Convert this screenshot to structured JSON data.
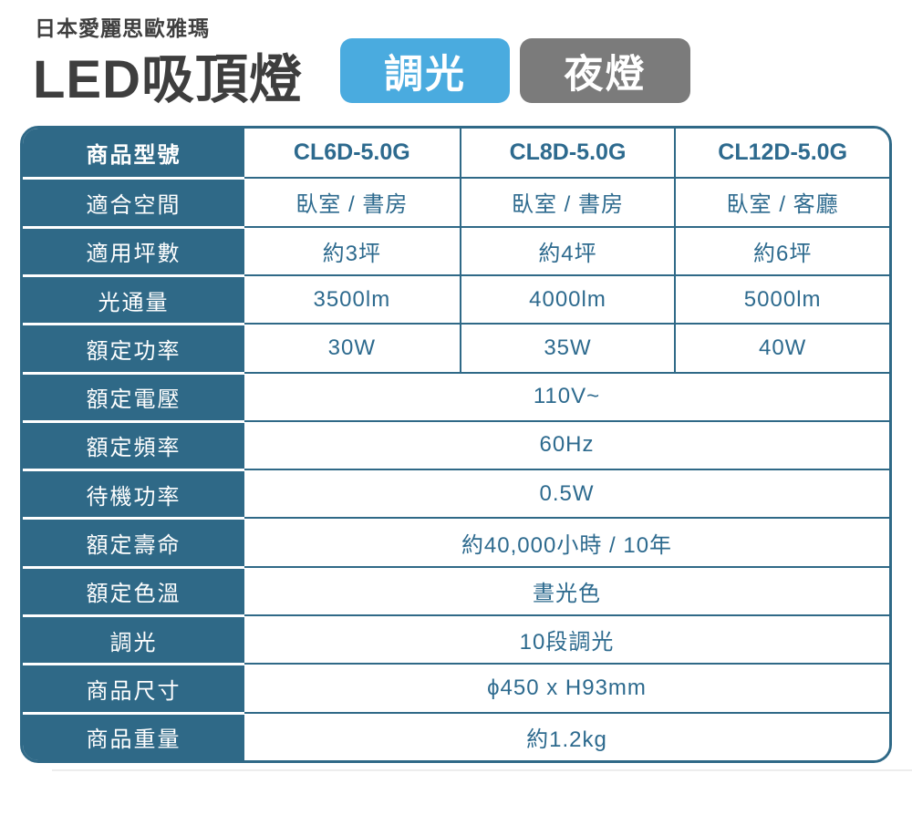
{
  "header": {
    "brand": "日本愛麗思歐雅瑪",
    "title": "LED吸頂燈",
    "badges": [
      {
        "label": "調光",
        "bg_color": "#4aabdf"
      },
      {
        "label": "夜燈",
        "bg_color": "#7b7b7b"
      }
    ]
  },
  "colors": {
    "table_accent": "#2f6987",
    "data_text": "#2d6a8e",
    "title_text": "#3e3e3e"
  },
  "table": {
    "rows": [
      {
        "label": "商品型號",
        "values": [
          "CL6D-5.0G",
          "CL8D-5.0G",
          "CL12D-5.0G"
        ],
        "span": false
      },
      {
        "label": "適合空間",
        "values": [
          "臥室 / 書房",
          "臥室 / 書房",
          "臥室 / 客廳"
        ],
        "span": false
      },
      {
        "label": "適用坪數",
        "values": [
          "約3坪",
          "約4坪",
          "約6坪"
        ],
        "span": false
      },
      {
        "label": "光通量",
        "values": [
          "3500lm",
          "4000lm",
          "5000lm"
        ],
        "span": false
      },
      {
        "label": "額定功率",
        "values": [
          "30W",
          "35W",
          "40W"
        ],
        "span": false
      },
      {
        "label": "額定電壓",
        "values": [
          "110V~"
        ],
        "span": true
      },
      {
        "label": "額定頻率",
        "values": [
          "60Hz"
        ],
        "span": true
      },
      {
        "label": "待機功率",
        "values": [
          "0.5W"
        ],
        "span": true
      },
      {
        "label": "額定壽命",
        "values": [
          "約40,000小時 / 10年"
        ],
        "span": true
      },
      {
        "label": "額定色溫",
        "values": [
          "晝光色"
        ],
        "span": true
      },
      {
        "label": "調光",
        "values": [
          "10段調光"
        ],
        "span": true
      },
      {
        "label": "商品尺寸",
        "values": [
          "ϕ450 x H93mm"
        ],
        "span": true
      },
      {
        "label": "商品重量",
        "values": [
          "約1.2kg"
        ],
        "span": true
      }
    ]
  }
}
